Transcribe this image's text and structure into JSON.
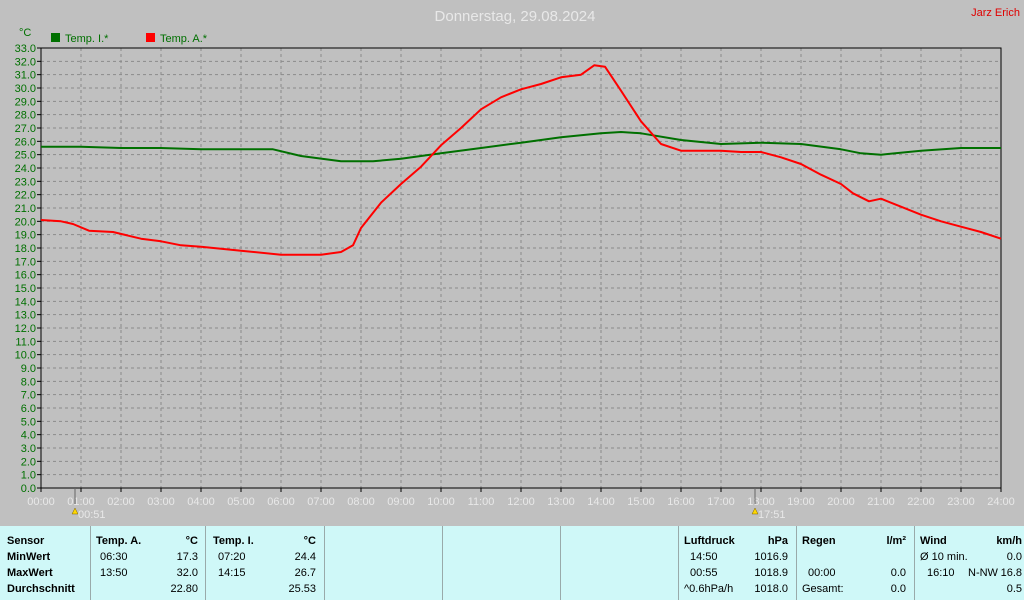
{
  "title": "Donnerstag, 29.08.2024",
  "author": "Jarz Erich",
  "unit_y": "°C",
  "legend": [
    {
      "label": "Temp. I.*",
      "color": "#007000"
    },
    {
      "label": "Temp. A.*",
      "color": "#ff0000"
    }
  ],
  "markers": [
    {
      "label": "00:51",
      "time": "00:51"
    },
    {
      "label": "17:51",
      "time": "17:51"
    }
  ],
  "chart_data": {
    "type": "line",
    "title": "Donnerstag, 29.08.2024",
    "ylabel": "°C",
    "xlim": [
      0,
      24
    ],
    "ylim": [
      0,
      33
    ],
    "y_ticks": [
      "0.0",
      "1.0",
      "2.0",
      "3.0",
      "4.0",
      "5.0",
      "6.0",
      "7.0",
      "8.0",
      "9.0",
      "10.0",
      "11.0",
      "12.0",
      "13.0",
      "14.0",
      "15.0",
      "16.0",
      "17.0",
      "18.0",
      "19.0",
      "20.0",
      "21.0",
      "22.0",
      "23.0",
      "24.0",
      "25.0",
      "26.0",
      "27.0",
      "28.0",
      "29.0",
      "30.0",
      "31.0",
      "32.0",
      "33.0"
    ],
    "x_ticks": [
      "00:00",
      "01:00",
      "02:00",
      "03:00",
      "04:00",
      "05:00",
      "06:00",
      "07:00",
      "08:00",
      "09:00",
      "10:00",
      "11:00",
      "12:00",
      "13:00",
      "14:00",
      "15:00",
      "16:00",
      "17:00",
      "18:00",
      "19:00",
      "20:00",
      "21:00",
      "22:00",
      "23:00",
      "24:00"
    ],
    "grid": true,
    "legend_position": "top-left",
    "series": [
      {
        "name": "Temp. I.*",
        "color": "#007000",
        "x": [
          0,
          1,
          2,
          3,
          4,
          5,
          5.8,
          6.5,
          7.5,
          8.3,
          9,
          10,
          11,
          12,
          13,
          14,
          14.5,
          15,
          16,
          17,
          18,
          19,
          20,
          20.5,
          21,
          22,
          23,
          24
        ],
        "y": [
          25.6,
          25.6,
          25.5,
          25.5,
          25.4,
          25.4,
          25.4,
          24.9,
          24.5,
          24.5,
          24.7,
          25.1,
          25.5,
          25.9,
          26.3,
          26.6,
          26.7,
          26.6,
          26.1,
          25.8,
          25.9,
          25.8,
          25.4,
          25.1,
          25.0,
          25.3,
          25.5,
          25.5
        ]
      },
      {
        "name": "Temp. A.*",
        "color": "#ff0000",
        "x": [
          0,
          0.5,
          0.8,
          1.2,
          1.8,
          2.5,
          3,
          3.5,
          4,
          5,
          6,
          6.5,
          7,
          7.5,
          7.8,
          8,
          8.5,
          9,
          9.5,
          10,
          10.5,
          11,
          11.5,
          12,
          12.5,
          13,
          13.5,
          13.83,
          14.1,
          14.5,
          15,
          15.5,
          16,
          16.5,
          17,
          17.5,
          18,
          18.5,
          19,
          19.5,
          20,
          20.3,
          20.7,
          21,
          21.5,
          22,
          22.5,
          23,
          23.5,
          24
        ],
        "y": [
          20.1,
          20.0,
          19.8,
          19.3,
          19.2,
          18.7,
          18.5,
          18.2,
          18.1,
          17.8,
          17.5,
          17.5,
          17.5,
          17.7,
          18.2,
          19.5,
          21.4,
          22.8,
          24.1,
          25.7,
          27.0,
          28.4,
          29.3,
          29.9,
          30.3,
          30.8,
          31.0,
          31.7,
          31.6,
          29.8,
          27.5,
          25.8,
          25.3,
          25.3,
          25.3,
          25.2,
          25.2,
          24.8,
          24.3,
          23.5,
          22.8,
          22.1,
          21.5,
          21.7,
          21.1,
          20.5,
          20.0,
          19.6,
          19.2,
          18.7
        ]
      }
    ]
  },
  "table": {
    "sensor": {
      "header": "Sensor",
      "rows": [
        "MinWert",
        "MaxWert",
        "Durchschnitt"
      ]
    },
    "temp_a": {
      "header": "Temp. A.",
      "unit": "°C",
      "times": [
        "06:30",
        "13:50",
        ""
      ],
      "values": [
        "17.3",
        "32.0",
        "22.80"
      ]
    },
    "temp_i": {
      "header": "Temp. I.",
      "unit": "°C",
      "times": [
        "07:20",
        "14:15",
        ""
      ],
      "values": [
        "24.4",
        "26.7",
        "25.53"
      ]
    },
    "luftdruck": {
      "header": "Luftdruck",
      "unit": "hPa",
      "times": [
        "14:50",
        "00:55",
        "^0.6hPa/h"
      ],
      "values": [
        "1016.9",
        "1018.9",
        "1018.0"
      ]
    },
    "regen": {
      "header": "Regen",
      "unit": "l/m²",
      "times": [
        "",
        "00:00",
        "Gesamt:"
      ],
      "values": [
        "",
        "0.0",
        "0.0"
      ]
    },
    "wind": {
      "header": "Wind",
      "unit": "km/h",
      "times": [
        "Ø 10 min.",
        "16:10",
        ""
      ],
      "dirs": [
        "",
        "N-NW",
        ""
      ],
      "values": [
        "0.0",
        "16.8",
        "0.5"
      ]
    }
  }
}
